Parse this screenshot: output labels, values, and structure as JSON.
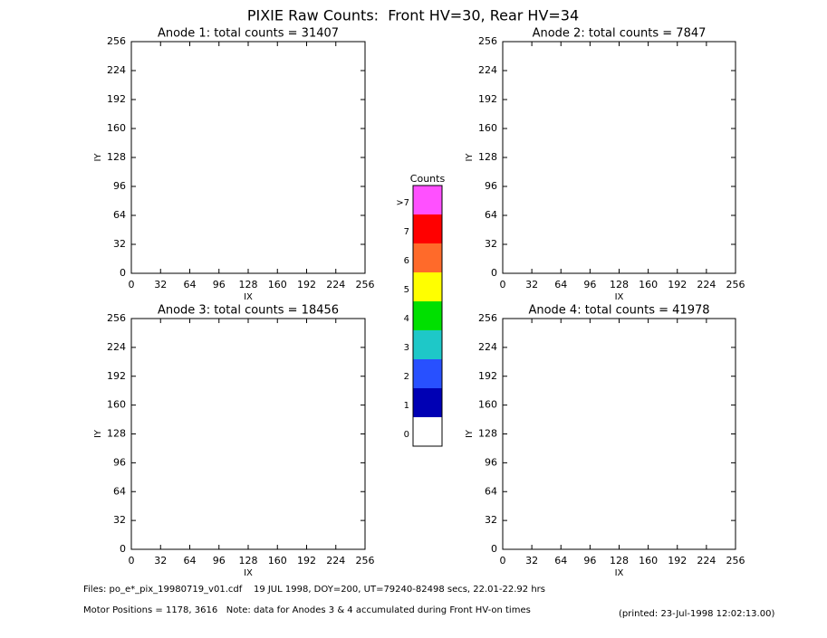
{
  "title": "PIXIE Raw Counts:  Front HV=30, Rear HV=34",
  "chart_data": [
    {
      "type": "heatmap",
      "title": "Anode 1: total counts = 31407",
      "xlabel": "IX",
      "ylabel": "IY",
      "xlim": [
        0,
        256
      ],
      "ylim": [
        0,
        256
      ],
      "xticks": [
        0,
        32,
        64,
        96,
        128,
        160,
        192,
        224,
        256
      ],
      "yticks": [
        0,
        32,
        64,
        96,
        128,
        160,
        192,
        224,
        256
      ]
    },
    {
      "type": "heatmap",
      "title": "Anode 2: total counts = 7847",
      "xlabel": "IX",
      "ylabel": "IY",
      "xlim": [
        0,
        256
      ],
      "ylim": [
        0,
        256
      ],
      "xticks": [
        0,
        32,
        64,
        96,
        128,
        160,
        192,
        224,
        256
      ],
      "yticks": [
        0,
        32,
        64,
        96,
        128,
        160,
        192,
        224,
        256
      ]
    },
    {
      "type": "heatmap",
      "title": "Anode 3: total counts = 18456",
      "xlabel": "IX",
      "ylabel": "IY",
      "xlim": [
        0,
        256
      ],
      "ylim": [
        0,
        256
      ],
      "xticks": [
        0,
        32,
        64,
        96,
        128,
        160,
        192,
        224,
        256
      ],
      "yticks": [
        0,
        32,
        64,
        96,
        128,
        160,
        192,
        224,
        256
      ]
    },
    {
      "type": "heatmap",
      "title": "Anode 4: total counts = 41978",
      "xlabel": "IX",
      "ylabel": "IY",
      "xlim": [
        0,
        256
      ],
      "ylim": [
        0,
        256
      ],
      "xticks": [
        0,
        32,
        64,
        96,
        128,
        160,
        192,
        224,
        256
      ],
      "yticks": [
        0,
        32,
        64,
        96,
        128,
        160,
        192,
        224,
        256
      ]
    }
  ],
  "colorbar": {
    "title": "Counts",
    "levels": [
      {
        "label": "0",
        "color": "#ffffff"
      },
      {
        "label": "1",
        "color": "#0000b4"
      },
      {
        "label": "2",
        "color": "#2850ff"
      },
      {
        "label": "3",
        "color": "#1ec8c8"
      },
      {
        "label": "4",
        "color": "#00e000"
      },
      {
        "label": "5",
        "color": "#ffff00"
      },
      {
        "label": "6",
        "color": "#ff6a2a"
      },
      {
        "label": "7",
        "color": "#ff0000"
      },
      {
        "label": ">7",
        "color": "#ff50ff"
      }
    ]
  },
  "footer": {
    "files": "Files: po_e*_pix_19980719_v01.cdf    19 JUL 1998, DOY=200, UT=79240-82498 secs, 22.01-22.92 hrs",
    "motor": "Motor Positions = 1178, 3616   Note: data for Anodes 3 & 4 accumulated during Front HV-on times",
    "printed": "(printed: 23-Jul-1998 12:02:13.00)"
  }
}
